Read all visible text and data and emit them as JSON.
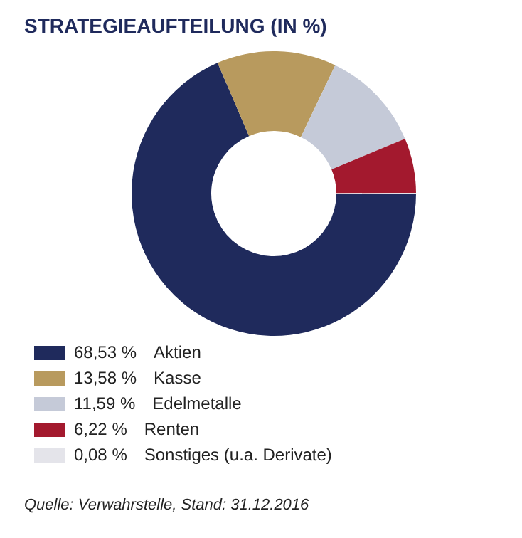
{
  "chart_data": {
    "type": "donut",
    "title": "STRATEGIEAUFTEILUNG (IN %)",
    "categories": [
      "Aktien",
      "Kasse",
      "Edelmetalle",
      "Renten",
      "Sonstiges (u.a. Derivate)"
    ],
    "values": [
      68.53,
      13.58,
      11.59,
      6.22,
      0.08
    ],
    "value_labels": [
      "68,53 %",
      "13,58 %",
      "11,59 %",
      "6,22 %",
      "0,08 %"
    ],
    "colors": [
      "#1f2a5c",
      "#b89a5e",
      "#c5cad8",
      "#a3192e",
      "#e4e4ea"
    ],
    "legend": "bottom",
    "annotations": [
      "Quelle: Verwahrstelle, Stand: 31.12.2016"
    ]
  }
}
